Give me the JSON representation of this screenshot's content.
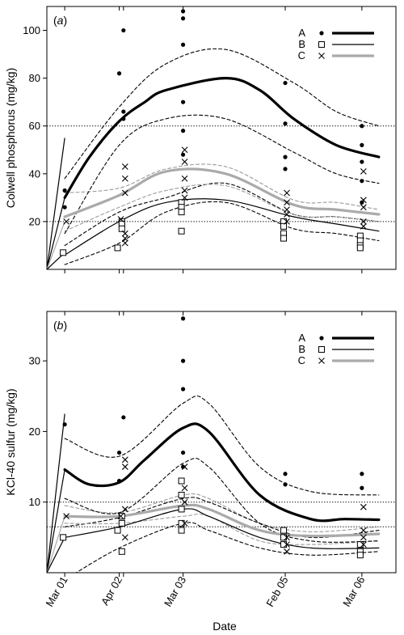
{
  "chart_data": [
    {
      "type": "line",
      "panel_label": "a",
      "ylabel": "Colwell phosphorus (mg/kg)",
      "ylim": [
        0,
        110
      ],
      "yticks": [
        20,
        40,
        60,
        80,
        100
      ],
      "reference_lines": [
        20,
        60
      ],
      "legend": {
        "position": "top-right",
        "entries": [
          {
            "name": "A",
            "marker": "dot",
            "line": "thick",
            "color": "#000000"
          },
          {
            "name": "B",
            "marker": "open-square",
            "line": "thin",
            "color": "#000000"
          },
          {
            "name": "C",
            "marker": "x",
            "line": "thick-grey",
            "color": "#aaaaaa"
          }
        ]
      },
      "curves": [
        {
          "series": "A",
          "kind": "mean",
          "x": [
            18331,
            18360,
            18395,
            18425,
            18450,
            18520,
            18560,
            18600,
            18650,
            18700
          ],
          "y": [
            30,
            47,
            62,
            70,
            75,
            80,
            75,
            63,
            52,
            47
          ]
        },
        {
          "series": "A",
          "kind": "upper",
          "x": [
            18331,
            18395,
            18450,
            18520,
            18600,
            18650,
            18700
          ],
          "y": [
            38,
            68,
            86,
            92,
            78,
            66,
            60
          ]
        },
        {
          "series": "A",
          "kind": "lower",
          "x": [
            18331,
            18395,
            18450,
            18520,
            18600,
            18650,
            18700
          ],
          "y": [
            15,
            52,
            63,
            63,
            49,
            40,
            36
          ]
        },
        {
          "series": "B",
          "kind": "mean",
          "x": [
            18331,
            18395,
            18450,
            18520,
            18600,
            18650,
            18700
          ],
          "y": [
            6,
            20,
            28,
            29,
            22,
            19,
            16
          ]
        },
        {
          "series": "B",
          "kind": "upper",
          "x": [
            18331,
            18395,
            18450,
            18520,
            18600,
            18650,
            18700
          ],
          "y": [
            10,
            24,
            30,
            36,
            23,
            22,
            20
          ]
        },
        {
          "series": "B",
          "kind": "lower",
          "x": [
            18331,
            18395,
            18450,
            18520,
            18600,
            18650,
            18700
          ],
          "y": [
            2,
            11,
            24,
            28,
            17,
            15,
            12
          ]
        },
        {
          "series": "C",
          "kind": "mean",
          "x": [
            18331,
            18395,
            18450,
            18520,
            18600,
            18650,
            18700
          ],
          "y": [
            22,
            31,
            41,
            40,
            27,
            25,
            23
          ]
        },
        {
          "series": "C",
          "kind": "upper",
          "x": [
            18331,
            18395,
            18450,
            18520,
            18600,
            18650,
            18700
          ],
          "y": [
            32,
            34,
            42,
            43,
            29,
            28,
            25
          ]
        },
        {
          "series": "C",
          "kind": "lower",
          "x": [
            18331,
            18395,
            18450,
            18520,
            18600,
            18650,
            18700
          ],
          "y": [
            16,
            26,
            33,
            35,
            23,
            22,
            20
          ]
        }
      ],
      "origin_lines": {
        "x": 18310,
        "y": 0,
        "to": [
          [
            18331,
            55
          ],
          [
            18331,
            30
          ],
          [
            18331,
            20
          ],
          [
            18331,
            7
          ]
        ]
      },
      "points": {
        "A": [
          [
            18331,
            33
          ],
          [
            18331,
            26
          ],
          [
            18395,
            82
          ],
          [
            18400,
            100
          ],
          [
            18400,
            66
          ],
          [
            18400,
            63
          ],
          [
            18470,
            108
          ],
          [
            18470,
            105
          ],
          [
            18470,
            94
          ],
          [
            18470,
            70
          ],
          [
            18470,
            58
          ],
          [
            18470,
            48
          ],
          [
            18590,
            78
          ],
          [
            18590,
            61
          ],
          [
            18590,
            47
          ],
          [
            18590,
            42
          ],
          [
            18680,
            60
          ],
          [
            18680,
            52
          ],
          [
            18680,
            45
          ],
          [
            18680,
            37
          ],
          [
            18680,
            28
          ]
        ],
        "B": [
          [
            18331,
            7
          ],
          [
            18395,
            9
          ],
          [
            18400,
            20
          ],
          [
            18400,
            19
          ],
          [
            18400,
            17
          ],
          [
            18470,
            28
          ],
          [
            18470,
            26
          ],
          [
            18470,
            24
          ],
          [
            18470,
            16
          ],
          [
            18590,
            20
          ],
          [
            18590,
            18
          ],
          [
            18590,
            15
          ],
          [
            18590,
            13
          ],
          [
            18680,
            14
          ],
          [
            18680,
            12
          ],
          [
            18680,
            10
          ],
          [
            18680,
            9
          ]
        ],
        "C": [
          [
            18331,
            20
          ],
          [
            18395,
            21
          ],
          [
            18400,
            43
          ],
          [
            18400,
            38
          ],
          [
            18400,
            32
          ],
          [
            18400,
            15
          ],
          [
            18400,
            13
          ],
          [
            18400,
            11
          ],
          [
            18470,
            50
          ],
          [
            18470,
            45
          ],
          [
            18470,
            38
          ],
          [
            18470,
            33
          ],
          [
            18470,
            30
          ],
          [
            18590,
            32
          ],
          [
            18590,
            28
          ],
          [
            18590,
            25
          ],
          [
            18590,
            23
          ],
          [
            18590,
            20
          ],
          [
            18680,
            41
          ],
          [
            18680,
            29
          ],
          [
            18680,
            26
          ],
          [
            18680,
            20
          ],
          [
            18680,
            18
          ]
        ]
      }
    },
    {
      "type": "line",
      "panel_label": "b",
      "ylabel": "KCl-40 sulfur (mg/kg)",
      "ylim": [
        0,
        37
      ],
      "yticks": [
        10,
        20,
        30
      ],
      "reference_lines": [
        6.5,
        10
      ],
      "legend": {
        "position": "top-right",
        "entries": [
          {
            "name": "A",
            "marker": "dot",
            "line": "thick",
            "color": "#000000"
          },
          {
            "name": "B",
            "marker": "open-square",
            "line": "thin",
            "color": "#000000"
          },
          {
            "name": "C",
            "marker": "x",
            "line": "thick-grey",
            "color": "#aaaaaa"
          }
        ]
      },
      "curves": [
        {
          "series": "A",
          "kind": "mean",
          "x": [
            18331,
            18360,
            18395,
            18425,
            18470,
            18500,
            18560,
            18620,
            18660,
            18700
          ],
          "y": [
            14.6,
            12.5,
            12.8,
            16,
            20.5,
            20,
            11,
            7.6,
            7.6,
            7.5
          ]
        },
        {
          "series": "A",
          "kind": "upper",
          "x": [
            18331,
            18395,
            18470,
            18500,
            18560,
            18620,
            18700
          ],
          "y": [
            19,
            16.5,
            24,
            24,
            15,
            11.5,
            11
          ]
        },
        {
          "series": "A",
          "kind": "lower",
          "x": [
            18331,
            18395,
            18470,
            18500,
            18560,
            18620,
            18700
          ],
          "y": [
            10.5,
            8.5,
            15.5,
            15,
            7,
            4.5,
            4.5
          ]
        },
        {
          "series": "B",
          "kind": "mean",
          "x": [
            18331,
            18395,
            18470,
            18500,
            18560,
            18620,
            18700
          ],
          "y": [
            5,
            6.5,
            9,
            8,
            5,
            3.5,
            3.5
          ]
        },
        {
          "series": "B",
          "kind": "upper",
          "x": [
            18331,
            18395,
            18470,
            18500,
            18560,
            18620,
            18700
          ],
          "y": [
            6.5,
            7.8,
            10.5,
            10,
            7,
            5,
            6
          ]
        },
        {
          "series": "B",
          "kind": "lower",
          "x": [
            18331,
            18395,
            18470,
            18500,
            18560,
            18620,
            18700
          ],
          "y": [
            -1,
            3.5,
            7,
            6,
            3.5,
            2.5,
            3
          ]
        },
        {
          "series": "C",
          "kind": "mean",
          "x": [
            18331,
            18395,
            18470,
            18500,
            18560,
            18620,
            18700
          ],
          "y": [
            8,
            8,
            9.5,
            9,
            6,
            5.2,
            5.5
          ]
        },
        {
          "series": "C",
          "kind": "upper",
          "x": [
            18331,
            18395,
            18470,
            18500,
            18560,
            18620,
            18700
          ],
          "y": [
            9.5,
            8.5,
            11,
            10.5,
            7,
            5.8,
            6.5
          ]
        },
        {
          "series": "C",
          "kind": "lower",
          "x": [
            18331,
            18395,
            18470,
            18500,
            18560,
            18620,
            18700
          ],
          "y": [
            7,
            7,
            8,
            8,
            4.5,
            4,
            4.5
          ]
        }
      ],
      "origin_lines": {
        "x": 18310,
        "y": 0,
        "to": [
          [
            18331,
            22.5
          ],
          [
            18331,
            14.6
          ],
          [
            18331,
            8
          ],
          [
            18331,
            5
          ]
        ]
      },
      "points": {
        "A": [
          [
            18331,
            21
          ],
          [
            18395,
            17
          ],
          [
            18395,
            13
          ],
          [
            18400,
            22
          ],
          [
            18470,
            36
          ],
          [
            18470,
            30
          ],
          [
            18470,
            26
          ],
          [
            18470,
            17
          ],
          [
            18470,
            15
          ],
          [
            18590,
            14
          ],
          [
            18590,
            12.5
          ],
          [
            18680,
            14
          ],
          [
            18680,
            12
          ]
        ],
        "B": [
          [
            18331,
            5
          ],
          [
            18395,
            6
          ],
          [
            18400,
            3
          ],
          [
            18400,
            8
          ],
          [
            18400,
            7
          ],
          [
            18470,
            13
          ],
          [
            18470,
            11
          ],
          [
            18470,
            9
          ],
          [
            18470,
            7
          ],
          [
            18470,
            6
          ],
          [
            18590,
            6
          ],
          [
            18590,
            5
          ],
          [
            18590,
            4
          ],
          [
            18680,
            4
          ],
          [
            18680,
            3
          ],
          [
            18680,
            2.5
          ]
        ],
        "C": [
          [
            18331,
            8
          ],
          [
            18395,
            8
          ],
          [
            18400,
            16
          ],
          [
            18400,
            15
          ],
          [
            18400,
            9
          ],
          [
            18400,
            5
          ],
          [
            18470,
            15
          ],
          [
            18470,
            12
          ],
          [
            18470,
            10
          ],
          [
            18470,
            7
          ],
          [
            18590,
            5
          ],
          [
            18590,
            4
          ],
          [
            18590,
            3
          ],
          [
            18680,
            9.3
          ],
          [
            18680,
            6
          ],
          [
            18680,
            5
          ],
          [
            18680,
            4
          ]
        ]
      }
    }
  ],
  "x_axis": {
    "label": "Date",
    "ticks": [
      {
        "value": 18331,
        "label": "Mar 01"
      },
      {
        "value": 18395,
        "label": "Apr 02"
      },
      {
        "value": 18470,
        "label": "Mar 03"
      },
      {
        "value": 18590,
        "label": "Feb 05"
      },
      {
        "value": 18680,
        "label": "Mar 06"
      }
    ],
    "minor_ticks": [
      18400
    ],
    "xlim": [
      18310,
      18720
    ]
  },
  "legend_labels": [
    "A",
    "B",
    "C"
  ],
  "colors": {
    "A": "#000000",
    "B": "#000000",
    "C": "#aaaaaa"
  }
}
